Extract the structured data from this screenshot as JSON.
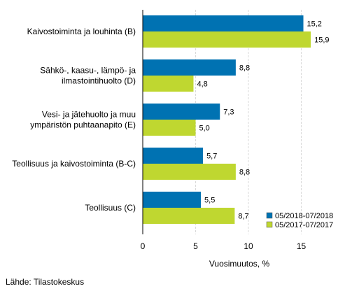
{
  "chart_data": {
    "type": "bar",
    "orientation": "horizontal",
    "categories": [
      "Kaivostoiminta ja louhinta (B)",
      "Sähkö-, kaasu-, lämpö- ja ilmastointihuolto (D)",
      "Vesi- ja jätehuolto ja muu ympäristön puhtaanapito (E)",
      "Teollisuus ja kaivostoiminta (B-C)",
      "Teollisuus (C)"
    ],
    "category_lines": [
      [
        "Kaivostoiminta ja louhinta (B)"
      ],
      [
        "Sähkö-, kaasu-, lämpö- ja",
        "ilmastointihuolto (D)"
      ],
      [
        "Vesi- ja jätehuolto ja muu",
        "ympäristön puhtaanapito (E)"
      ],
      [
        "Teollisuus ja kaivostoiminta (B-C)"
      ],
      [
        "Teollisuus (C)"
      ]
    ],
    "series": [
      {
        "name": "05/2018-07/2018",
        "values": [
          15.2,
          8.8,
          7.3,
          5.7,
          5.5
        ],
        "labels": [
          "15,2",
          "8,8",
          "7,3",
          "5,7",
          "5,5"
        ],
        "color": "#0072b2"
      },
      {
        "name": "05/2017-07/2017",
        "values": [
          15.9,
          4.8,
          5.0,
          8.8,
          8.7
        ],
        "labels": [
          "15,9",
          "4,8",
          "5,0",
          "8,8",
          "8,7"
        ],
        "color": "#bfd730"
      }
    ],
    "xlim": [
      0,
      18
    ],
    "xticks": [
      0,
      5,
      10,
      15
    ],
    "xtick_labels": [
      "0",
      "5",
      "10",
      "15"
    ],
    "xlabel": "Vuosimuutos, %",
    "grid": "vertical",
    "legend": "bottom-right"
  },
  "source": "Lähde: Tilastokeskus"
}
